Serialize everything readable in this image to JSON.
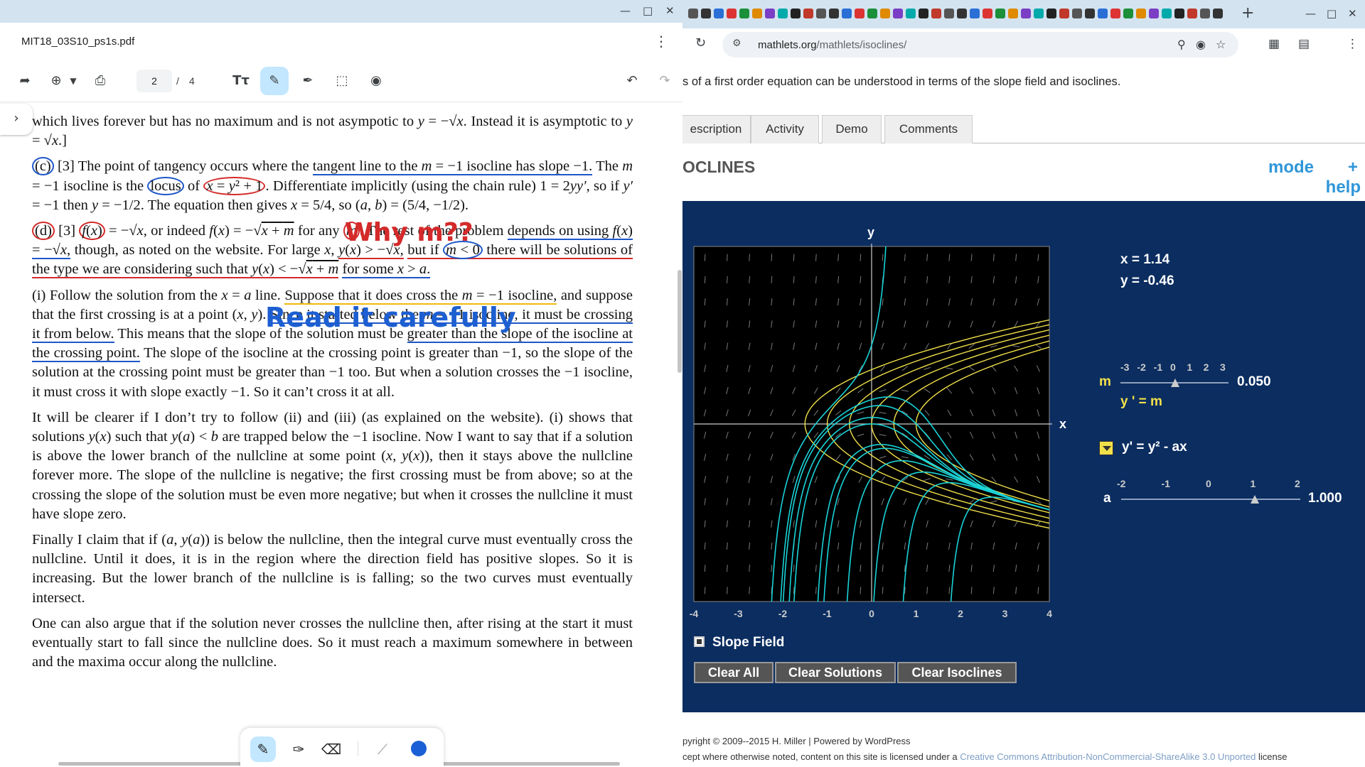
{
  "pdf": {
    "filename": "MIT18_03S10_ps1s.pdf",
    "page_current": "2",
    "page_separator": "/",
    "page_total": "4",
    "ink_notes": {
      "why": "Why m??",
      "read": "Read it carefully"
    }
  },
  "browser": {
    "url_domain": "mathlets.org",
    "url_path": "/mathlets/isoclines/",
    "intro_text": "s of a first order equation can be understood in terms of the slope field and isoclines.",
    "tabs": [
      "escription",
      "Activity",
      "Demo",
      "Comments"
    ],
    "applet_title": "OCLINES",
    "mode_label": "mode",
    "plus_label": "+",
    "help_label": "help",
    "footer_line1": "pyright © 2009--2015 H. Miller | Powered by WordPress",
    "footer_line2_a": "cept where otherwise noted, content on this site is licensed under a ",
    "footer_line2_link": "Creative Commons Attribution-NonCommercial-ShareAlike 3.0 Unported",
    "footer_line2_b": " license"
  },
  "applet": {
    "x_readout": "x = 1.14",
    "y_readout": "y = -0.46",
    "m_label": "m",
    "m_value_text": "0.050",
    "m_value": 0.05,
    "m_scale": [
      "-3",
      "-2",
      "-1",
      "0",
      "1",
      "2",
      "3"
    ],
    "isocline_eq": "y ' = m",
    "equation": "y' = y² - ax",
    "a_label": "a",
    "a_value_text": "1.000",
    "a_value": 1.0,
    "a_scale": [
      "-2",
      "-1",
      "0",
      "1",
      "2"
    ],
    "x_axis_label": "x",
    "y_axis_label": "y",
    "x_ticks": [
      "-4",
      "-3",
      "-2",
      "-1",
      "0",
      "1",
      "2",
      "3",
      "4"
    ],
    "slope_field_label": "Slope Field",
    "slope_field_checked": true,
    "buttons": [
      "Clear All",
      "Clear Solutions",
      "Clear Isoclines"
    ]
  },
  "colors": {
    "applet_bg": "#0b2d60",
    "solution_curves": "#19d3d8",
    "isoclines": "#f2e04a",
    "ink_red": "#d42a2a",
    "ink_blue": "#1d5fd1"
  }
}
